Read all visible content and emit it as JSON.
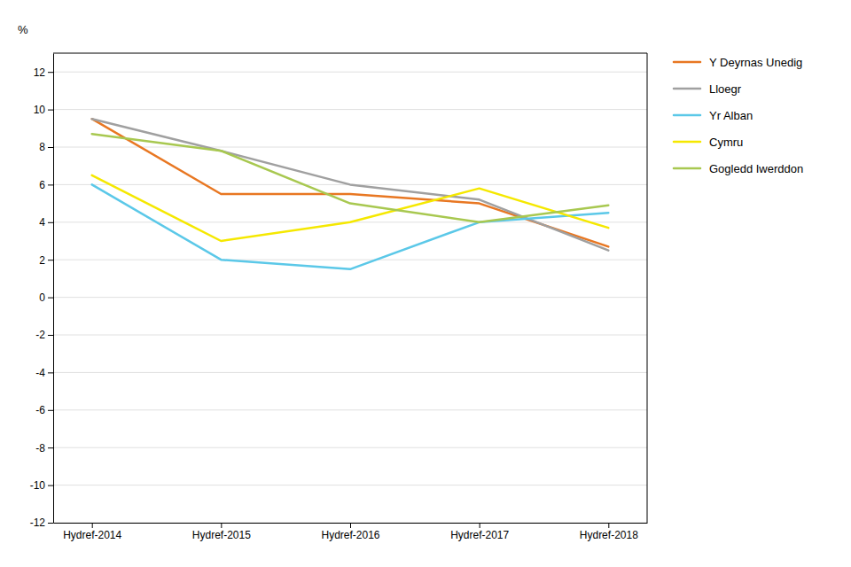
{
  "chart_data": {
    "type": "line",
    "ylabel": "%",
    "categories": [
      "Hydref-2014",
      "Hydref-2015",
      "Hydref-2016",
      "Hydref-2017",
      "Hydref-2018"
    ],
    "series": [
      {
        "name": "Y Deyrnas Unedig",
        "color": "#E87722",
        "values": [
          9.5,
          5.5,
          5.5,
          5.0,
          2.7
        ]
      },
      {
        "name": "Lloegr",
        "color": "#A0A0A0",
        "values": [
          9.5,
          7.8,
          6.0,
          5.2,
          2.5
        ]
      },
      {
        "name": "Yr Alban",
        "color": "#5BC8E8",
        "values": [
          6.0,
          2.0,
          1.5,
          4.0,
          4.5
        ]
      },
      {
        "name": "Cymru",
        "color": "#F5E800",
        "values": [
          6.5,
          3.0,
          4.0,
          5.8,
          3.7
        ]
      },
      {
        "name": "Gogledd Iwerddon",
        "color": "#A8C850",
        "values": [
          8.7,
          7.8,
          5.0,
          4.0,
          4.9
        ]
      }
    ],
    "ylim": [
      -12,
      13
    ],
    "yticks": [
      -12,
      -10,
      -8,
      -6,
      -4,
      -2,
      0,
      2,
      4,
      6,
      8,
      10,
      12
    ],
    "grid": true,
    "legend": "right"
  }
}
